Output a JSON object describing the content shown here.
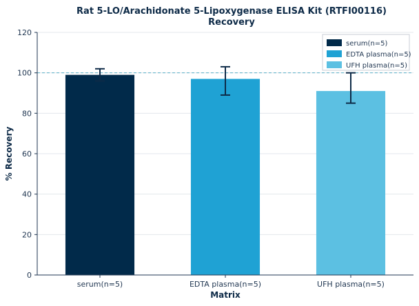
{
  "chart_data": {
    "type": "bar",
    "title": "Rat 5-LO/Arachidonate 5-Lipoxygenase ELISA Kit (RTFI00116)",
    "subtitle": "Recovery",
    "xlabel": "Matrix",
    "ylabel": "% Recovery",
    "ylim": [
      0,
      120
    ],
    "yticks": [
      0,
      20,
      40,
      60,
      80,
      100,
      120
    ],
    "categories": [
      "serum(n=5)",
      "EDTA plasma(n=5)",
      "UFH plasma(n=5)"
    ],
    "values": [
      99,
      97,
      91
    ],
    "error_low": [
      96,
      89,
      85
    ],
    "error_high": [
      102,
      103,
      100
    ],
    "colors": [
      "#012a4a",
      "#1fa2d4",
      "#5cc0e2"
    ],
    "reference_line": 100,
    "legend": {
      "position": "top-right",
      "entries": [
        "serum(n=5)",
        "EDTA plasma(n=5)",
        "UFH plasma(n=5)"
      ]
    },
    "grid": true
  }
}
